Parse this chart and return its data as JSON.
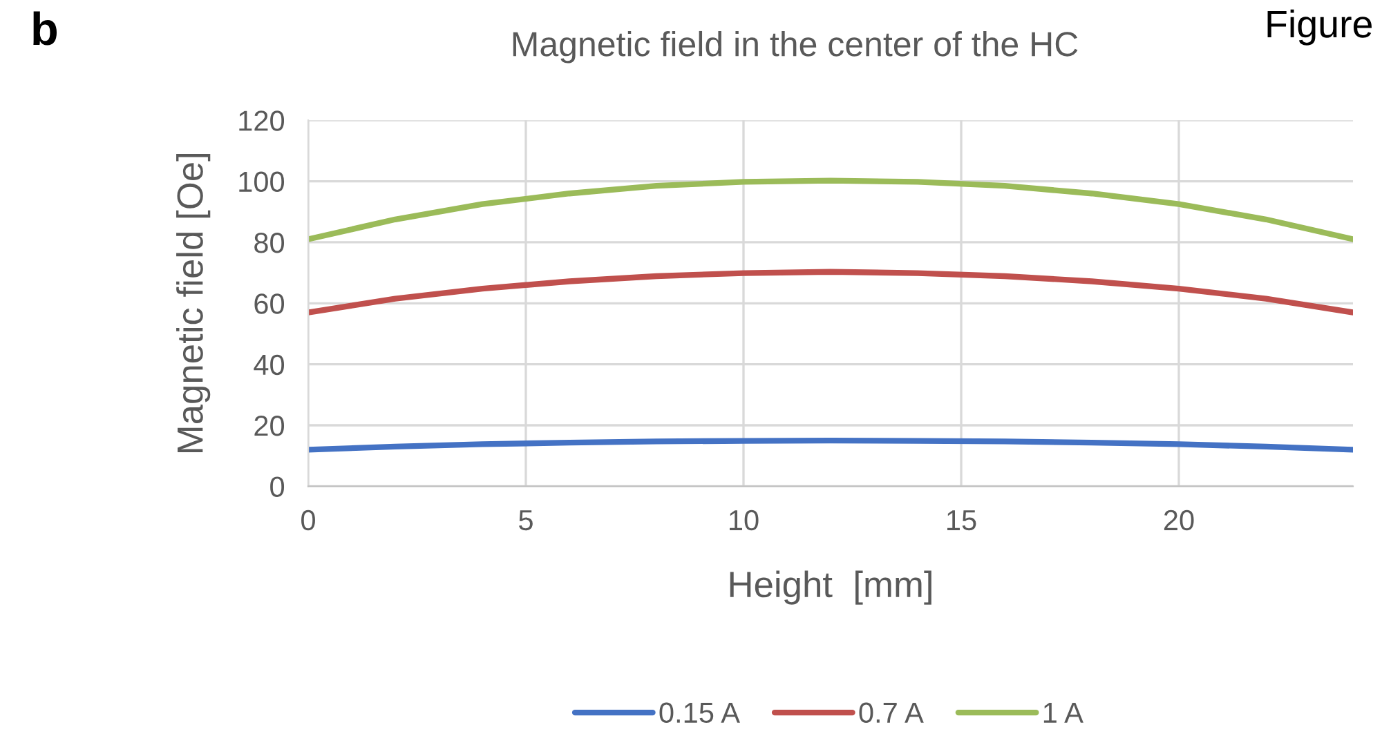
{
  "chart_data": {
    "type": "line",
    "title": "Magnetic field in the center of the HC",
    "xlabel": "Height  [mm]",
    "ylabel": "Magnetic field [Oe]",
    "annotations": [
      "b",
      "Figure"
    ],
    "x": [
      0,
      2,
      4,
      6,
      8,
      10,
      12,
      14,
      16,
      18,
      20,
      22,
      24
    ],
    "series": [
      {
        "name": "0.15 A",
        "color": "#4472c4",
        "values": [
          12,
          13,
          13.8,
          14.3,
          14.7,
          14.9,
          15,
          14.9,
          14.7,
          14.3,
          13.8,
          13,
          12
        ]
      },
      {
        "name": "0.7 A",
        "color": "#c0504d",
        "values": [
          57,
          61.5,
          64.8,
          67.2,
          68.9,
          69.9,
          70.3,
          69.9,
          68.9,
          67.2,
          64.8,
          61.5,
          57
        ]
      },
      {
        "name": "1 A",
        "color": "#9bbb59",
        "values": [
          81,
          87.5,
          92.5,
          96,
          98.5,
          99.8,
          100.2,
          99.8,
          98.5,
          96,
          92.5,
          87.5,
          81
        ]
      }
    ],
    "xlim": [
      0,
      24
    ],
    "xticks": [
      0,
      5,
      10,
      15,
      20
    ],
    "ylim": [
      0,
      120
    ],
    "yticks": [
      0,
      20,
      40,
      60,
      80,
      100,
      120
    ],
    "grid": true,
    "legend": "bottom",
    "marker": "none",
    "line_style": "solid"
  }
}
